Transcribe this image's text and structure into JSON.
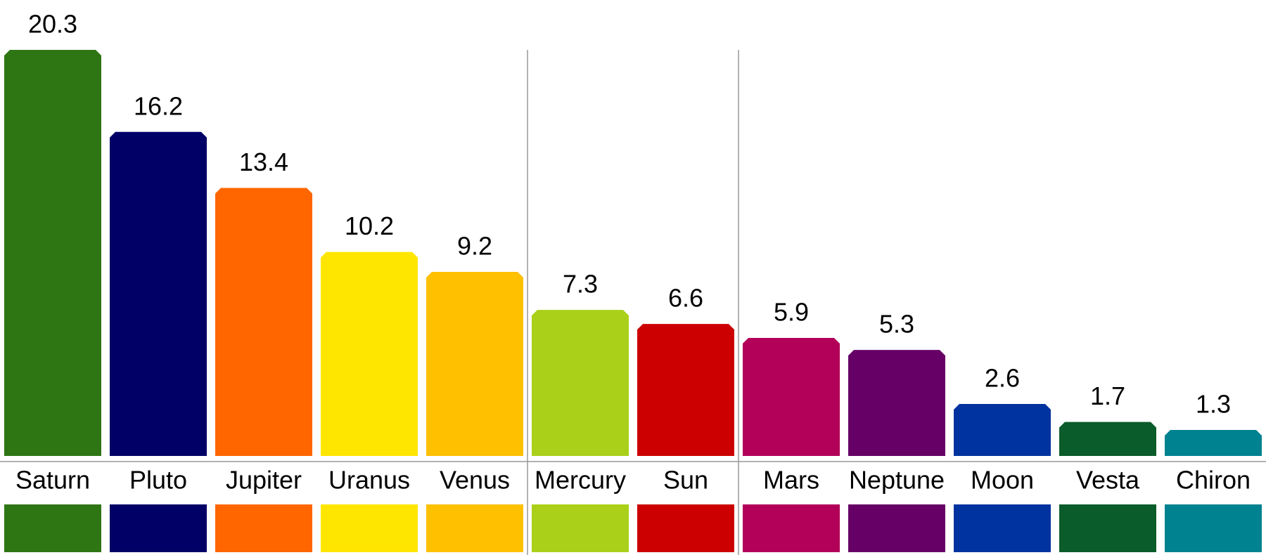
{
  "chart_data": {
    "type": "bar",
    "categories": [
      "Saturn",
      "Pluto",
      "Jupiter",
      "Uranus",
      "Venus",
      "Mercury",
      "Sun",
      "Mars",
      "Neptune",
      "Moon",
      "Vesta",
      "Chiron"
    ],
    "values": [
      20.3,
      16.2,
      13.4,
      10.2,
      9.2,
      7.3,
      6.6,
      5.9,
      5.3,
      2.6,
      1.7,
      1.3
    ],
    "colors": [
      "#2e7614",
      "#000066",
      "#ff6600",
      "#ffe600",
      "#ffc000",
      "#aad01a",
      "#cc0000",
      "#b30059",
      "#660066",
      "#0033a0",
      "#0a5c2a",
      "#008290"
    ]
  }
}
